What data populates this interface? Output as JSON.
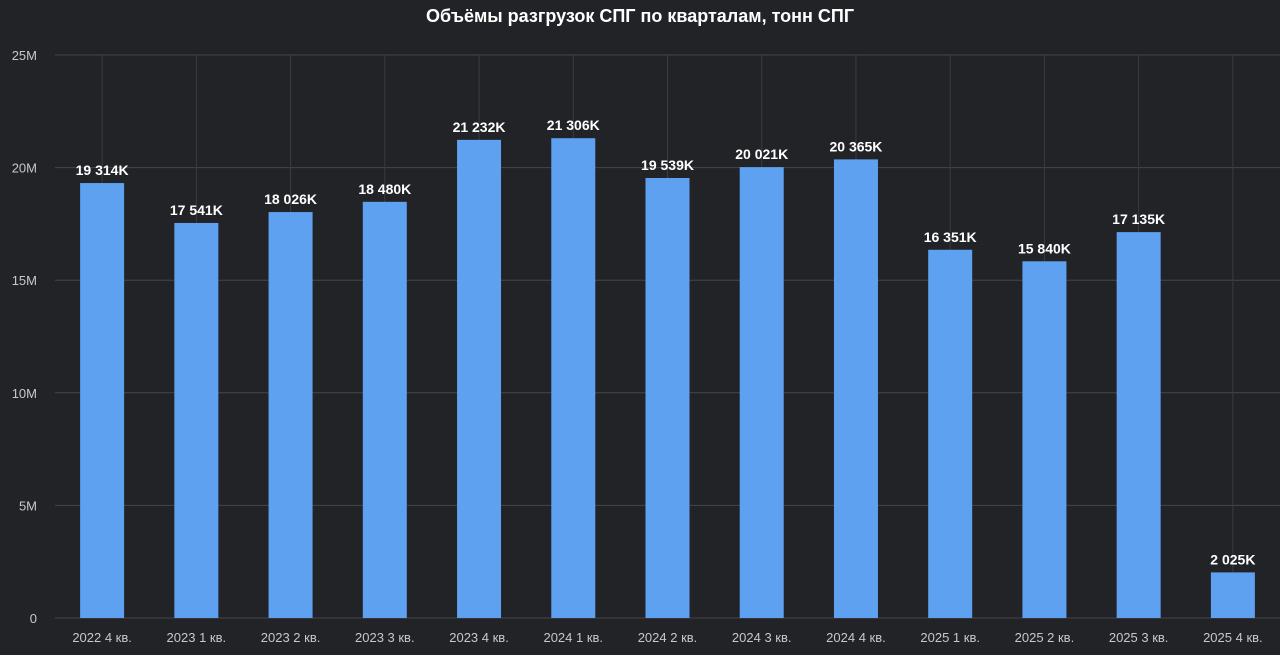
{
  "chart_data": {
    "type": "bar",
    "title": "Объёмы разгрузок СПГ по кварталам, тонн СПГ",
    "xlabel": "",
    "ylabel": "",
    "ylim": [
      0,
      25000000
    ],
    "y_ticks": [
      {
        "value": 0,
        "label": "0"
      },
      {
        "value": 5000000,
        "label": "5M"
      },
      {
        "value": 10000000,
        "label": "10M"
      },
      {
        "value": 15000000,
        "label": "15M"
      },
      {
        "value": 20000000,
        "label": "20M"
      },
      {
        "value": 25000000,
        "label": "25M"
      }
    ],
    "grid": true,
    "categories": [
      "2022 4 кв.",
      "2023 1 кв.",
      "2023 2 кв.",
      "2023 3 кв.",
      "2023 4 кв.",
      "2024 1 кв.",
      "2024 2 кв.",
      "2024 3 кв.",
      "2024 4 кв.",
      "2025 1 кв.",
      "2025 2 кв.",
      "2025 3 кв.",
      "2025 4 кв."
    ],
    "values": [
      19314000,
      17541000,
      18026000,
      18480000,
      21232000,
      21306000,
      19539000,
      20021000,
      20365000,
      16351000,
      15840000,
      17135000,
      2025000
    ],
    "data_labels": [
      "19 314K",
      "17 541K",
      "18 026K",
      "18 480K",
      "21 232K",
      "21 306K",
      "19 539K",
      "20 021K",
      "20 365K",
      "16 351K",
      "15 840K",
      "17 135K",
      "2 025K"
    ],
    "bar_color": "#5ea1f0",
    "background": "#222327"
  }
}
